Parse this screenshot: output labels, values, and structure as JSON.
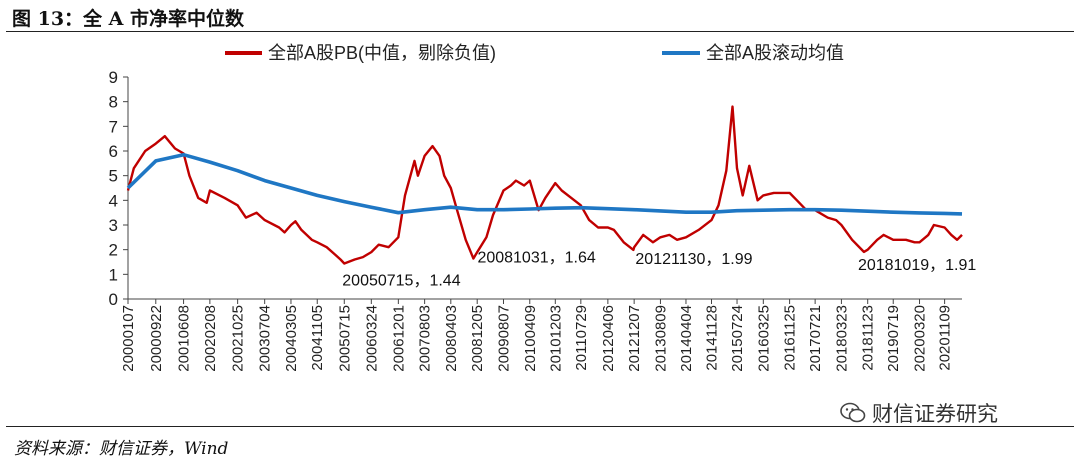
{
  "header": {
    "title": "图 13：全 A 市净率中位数"
  },
  "footer": {
    "source": "资料来源：财信证券，Wind"
  },
  "watermark": {
    "text": "财信证券研究",
    "icon": "wechat-icon"
  },
  "colors": {
    "pb_line": "#c00000",
    "ma_line": "#1f77c4"
  },
  "chart_data": {
    "type": "line",
    "title": "",
    "xlabel": "",
    "ylabel": "",
    "ylim": [
      0,
      9
    ],
    "yticks": [
      0,
      1,
      2,
      3,
      4,
      5,
      6,
      7,
      8,
      9
    ],
    "legend_position": "top",
    "grid": false,
    "x_tick_labels": [
      "20000107",
      "20000922",
      "20010608",
      "20020208",
      "20021025",
      "20030704",
      "20040305",
      "20041105",
      "20050715",
      "20060324",
      "20061201",
      "20070803",
      "20080403",
      "20081205",
      "20090807",
      "20100409",
      "20101203",
      "20110729",
      "20120406",
      "20121207",
      "20130809",
      "20140404",
      "20141128",
      "20150724",
      "20160325",
      "20161125",
      "20170721",
      "20180323",
      "20181123",
      "20190719",
      "20200320",
      "20201109"
    ],
    "series": [
      {
        "name": "全部A股PB(中值，剔除负值)",
        "color": "#c00000",
        "points": [
          [
            "20000107",
            4.4
          ],
          [
            "20000301",
            5.3
          ],
          [
            "20000615",
            6.0
          ],
          [
            "20000922",
            6.3
          ],
          [
            "20001215",
            6.6
          ],
          [
            "20010320",
            6.1
          ],
          [
            "20010608",
            5.9
          ],
          [
            "20010801",
            5.0
          ],
          [
            "20011022",
            4.1
          ],
          [
            "20020110",
            3.9
          ],
          [
            "20020208",
            4.4
          ],
          [
            "20020625",
            4.1
          ],
          [
            "20021025",
            3.8
          ],
          [
            "20030110",
            3.3
          ],
          [
            "20030420",
            3.5
          ],
          [
            "20030704",
            3.2
          ],
          [
            "20031115",
            2.9
          ],
          [
            "20040105",
            2.7
          ],
          [
            "20040305",
            3.0
          ],
          [
            "20040415",
            3.15
          ],
          [
            "20040610",
            2.8
          ],
          [
            "20040915",
            2.4
          ],
          [
            "20041105",
            2.3
          ],
          [
            "20050201",
            2.1
          ],
          [
            "20050420",
            1.8
          ],
          [
            "20050610",
            1.6
          ],
          [
            "20050715",
            1.44
          ],
          [
            "20051020",
            1.6
          ],
          [
            "20060105",
            1.7
          ],
          [
            "20060324",
            1.9
          ],
          [
            "20060601",
            2.2
          ],
          [
            "20060901",
            2.1
          ],
          [
            "20061201",
            2.5
          ],
          [
            "20070201",
            4.2
          ],
          [
            "20070501",
            5.6
          ],
          [
            "20070601",
            5.0
          ],
          [
            "20070803",
            5.8
          ],
          [
            "20071015",
            6.2
          ],
          [
            "20071220",
            5.8
          ],
          [
            "20080201",
            5.0
          ],
          [
            "20080403",
            4.5
          ],
          [
            "20080601",
            3.6
          ],
          [
            "20080820",
            2.4
          ],
          [
            "20081031",
            1.64
          ],
          [
            "20081205",
            1.9
          ],
          [
            "20090301",
            2.5
          ],
          [
            "20090501",
            3.4
          ],
          [
            "20090807",
            4.4
          ],
          [
            "20091015",
            4.6
          ],
          [
            "20091201",
            4.8
          ],
          [
            "20100215",
            4.6
          ],
          [
            "20100409",
            4.8
          ],
          [
            "20100630",
            3.6
          ],
          [
            "20100901",
            4.1
          ],
          [
            "20101203",
            4.7
          ],
          [
            "20110201",
            4.4
          ],
          [
            "20110501",
            4.1
          ],
          [
            "20110729",
            3.8
          ],
          [
            "20111015",
            3.2
          ],
          [
            "20120106",
            2.9
          ],
          [
            "20120406",
            2.9
          ],
          [
            "20120601",
            2.8
          ],
          [
            "20120901",
            2.3
          ],
          [
            "20121130",
            1.99
          ],
          [
            "20121207",
            2.1
          ],
          [
            "20130301",
            2.6
          ],
          [
            "20130601",
            2.3
          ],
          [
            "20130809",
            2.5
          ],
          [
            "20131101",
            2.6
          ],
          [
            "20140110",
            2.4
          ],
          [
            "20140404",
            2.5
          ],
          [
            "20140801",
            2.8
          ],
          [
            "20141128",
            3.2
          ],
          [
            "20150201",
            3.8
          ],
          [
            "20150415",
            5.2
          ],
          [
            "20150612",
            7.8
          ],
          [
            "20150724",
            5.3
          ],
          [
            "20150915",
            4.2
          ],
          [
            "20151115",
            5.4
          ],
          [
            "20160201",
            4.0
          ],
          [
            "20160325",
            4.2
          ],
          [
            "20160701",
            4.3
          ],
          [
            "20161125",
            4.3
          ],
          [
            "20170201",
            4.0
          ],
          [
            "20170501",
            3.6
          ],
          [
            "20170721",
            3.6
          ],
          [
            "20171115",
            3.3
          ],
          [
            "20180201",
            3.2
          ],
          [
            "20180323",
            3.0
          ],
          [
            "20180701",
            2.4
          ],
          [
            "20181019",
            1.91
          ],
          [
            "20181123",
            2.0
          ],
          [
            "20190220",
            2.4
          ],
          [
            "20190420",
            2.6
          ],
          [
            "20190719",
            2.4
          ],
          [
            "20191115",
            2.4
          ],
          [
            "20200203",
            2.3
          ],
          [
            "20200320",
            2.3
          ],
          [
            "20200610",
            2.6
          ],
          [
            "20200801",
            3.0
          ],
          [
            "20201109",
            2.9
          ],
          [
            "20210110",
            2.6
          ],
          [
            "20210305",
            2.4
          ],
          [
            "20210420",
            2.6
          ]
        ]
      },
      {
        "name": "全部A股滚动均值",
        "color": "#1f77c4",
        "points": [
          [
            "20000107",
            4.5
          ],
          [
            "20000922",
            5.6
          ],
          [
            "20010608",
            5.85
          ],
          [
            "20020208",
            5.55
          ],
          [
            "20021025",
            5.2
          ],
          [
            "20030704",
            4.8
          ],
          [
            "20040305",
            4.5
          ],
          [
            "20041105",
            4.2
          ],
          [
            "20050715",
            3.95
          ],
          [
            "20060324",
            3.72
          ],
          [
            "20061201",
            3.5
          ],
          [
            "20070803",
            3.62
          ],
          [
            "20080403",
            3.72
          ],
          [
            "20081205",
            3.62
          ],
          [
            "20090807",
            3.62
          ],
          [
            "20100409",
            3.65
          ],
          [
            "20101203",
            3.68
          ],
          [
            "20110729",
            3.7
          ],
          [
            "20120406",
            3.66
          ],
          [
            "20121207",
            3.62
          ],
          [
            "20130809",
            3.57
          ],
          [
            "20140404",
            3.52
          ],
          [
            "20141128",
            3.52
          ],
          [
            "20150724",
            3.58
          ],
          [
            "20160325",
            3.6
          ],
          [
            "20161125",
            3.62
          ],
          [
            "20170721",
            3.62
          ],
          [
            "20180323",
            3.6
          ],
          [
            "20181123",
            3.56
          ],
          [
            "20190719",
            3.52
          ],
          [
            "20200320",
            3.49
          ],
          [
            "20201109",
            3.47
          ],
          [
            "20210420",
            3.45
          ]
        ]
      }
    ],
    "annotations": [
      {
        "text": "20050715，1.44"
      },
      {
        "text": "20081031，1.64"
      },
      {
        "text": "20121130，1.99"
      },
      {
        "text": "20181019，1.91"
      }
    ]
  }
}
